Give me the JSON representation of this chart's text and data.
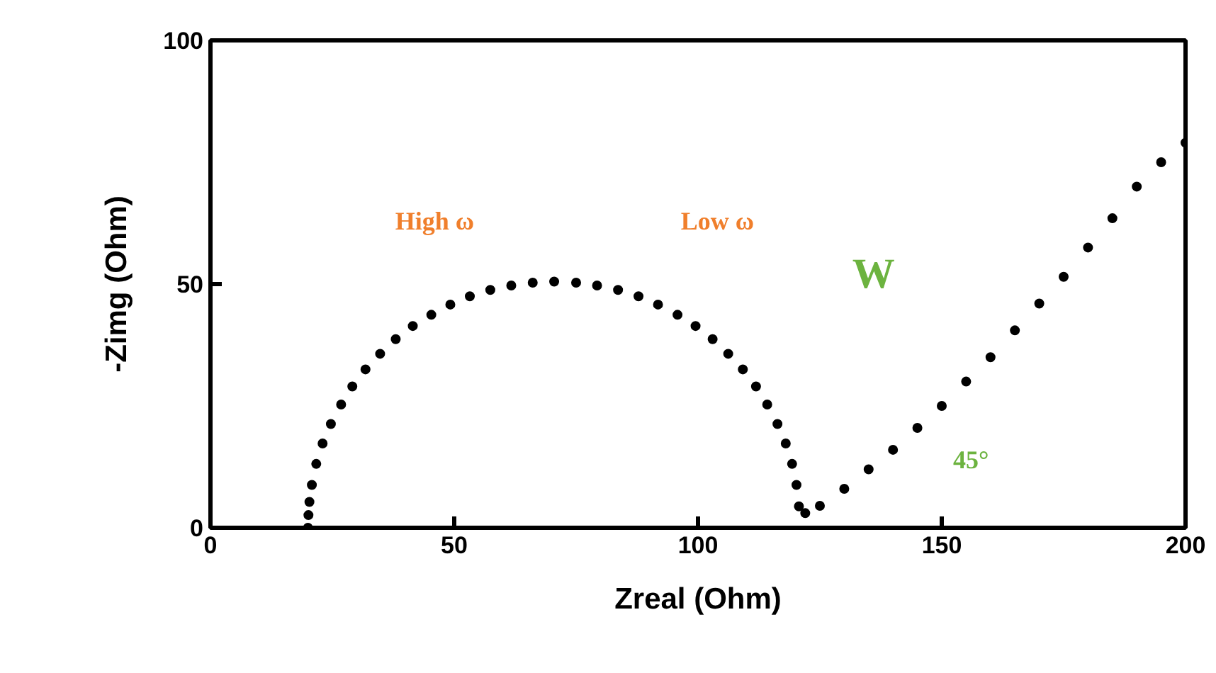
{
  "chart_data": {
    "type": "scatter",
    "xlabel": "Zreal (Ohm)",
    "ylabel": "-Zimg (Ohm)",
    "x": [
      20,
      20.1,
      20.3,
      20.8,
      21.7,
      23.0,
      24.7,
      26.8,
      29.1,
      31.8,
      34.8,
      38.0,
      41.5,
      45.3,
      49.2,
      53.2,
      57.4,
      61.7,
      66.1,
      70.5,
      75.0,
      79.3,
      83.6,
      87.8,
      91.8,
      95.8,
      99.5,
      103.0,
      106.2,
      109.2,
      111.9,
      114.2,
      116.3,
      118.0,
      119.3,
      120.2,
      120.7,
      122,
      125,
      130,
      135,
      140,
      145,
      150,
      155,
      160,
      165,
      170,
      175,
      180,
      185,
      190,
      195,
      200
    ],
    "values": [
      0,
      2.6,
      5.3,
      8.8,
      13.1,
      17.3,
      21.3,
      25.3,
      29.0,
      32.5,
      35.7,
      38.7,
      41.4,
      43.7,
      45.8,
      47.5,
      48.8,
      49.7,
      50.3,
      50.5,
      50.3,
      49.7,
      48.8,
      47.5,
      45.8,
      43.7,
      41.4,
      38.7,
      35.7,
      32.5,
      29.0,
      25.3,
      21.3,
      17.3,
      13.1,
      8.8,
      4.4,
      3,
      4.5,
      8,
      12,
      16,
      20.5,
      25,
      30,
      35,
      40.5,
      46,
      51.5,
      57.5,
      63.5,
      70,
      75,
      79
    ],
    "color": "#000000",
    "marker": "circle",
    "xlim": [
      0,
      200
    ],
    "ylim": [
      0,
      100
    ],
    "xticks": [
      0,
      50,
      100,
      150,
      200
    ],
    "yticks": [
      0,
      50,
      100
    ],
    "grid": false,
    "annotations": [
      "High ω",
      "Low ω",
      "W",
      "45°"
    ]
  }
}
